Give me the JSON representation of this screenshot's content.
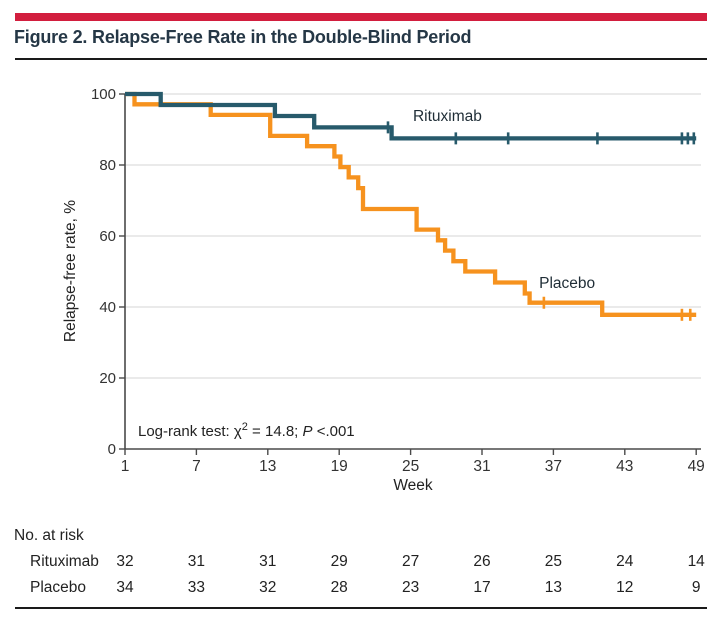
{
  "figure": {
    "title": "Figure 2. Relapse-Free Rate in the Double-Blind Period",
    "title_color": "#253746",
    "accent_color": "#d21e3e",
    "divider_color": "#1a1a1a"
  },
  "chart_data": {
    "type": "line",
    "subtype": "kaplan-meier-step",
    "xlabel": "Week",
    "ylabel": "Relapse-free rate, %",
    "xlim": [
      1,
      49
    ],
    "xticks": [
      1,
      7,
      13,
      19,
      25,
      31,
      37,
      43,
      49
    ],
    "ylim": [
      0,
      100
    ],
    "yticks": [
      0,
      20,
      40,
      60,
      80,
      100
    ],
    "grid": "horizontal",
    "grid_color": "#dedede",
    "axis_color": "#4a4a4a",
    "tick_label_color": "#333333",
    "annotation": {
      "part1": "Log-rank test: χ",
      "sup": "2",
      "part2": " = 14.8; ",
      "italic_p": "P",
      "part3": " <.001"
    },
    "series": [
      {
        "name": "Placebo",
        "color": "#f6921e",
        "label": "Placebo",
        "label_week": 35.8,
        "label_rate": 45.3,
        "points": [
          [
            1,
            100
          ],
          [
            1.8,
            100
          ],
          [
            1.8,
            97.1
          ],
          [
            8.2,
            97.1
          ],
          [
            8.2,
            94.1
          ],
          [
            13.2,
            94.1
          ],
          [
            13.2,
            88.2
          ],
          [
            16.3,
            88.2
          ],
          [
            16.3,
            85.3
          ],
          [
            18.6,
            85.3
          ],
          [
            18.6,
            82.4
          ],
          [
            19.1,
            82.4
          ],
          [
            19.1,
            79.4
          ],
          [
            19.8,
            79.4
          ],
          [
            19.8,
            76.5
          ],
          [
            20.6,
            76.5
          ],
          [
            20.6,
            73.5
          ],
          [
            21,
            73.5
          ],
          [
            21,
            67.6
          ],
          [
            25.5,
            67.6
          ],
          [
            25.5,
            61.8
          ],
          [
            27.3,
            61.8
          ],
          [
            27.3,
            58.8
          ],
          [
            27.9,
            58.8
          ],
          [
            27.9,
            55.9
          ],
          [
            28.6,
            55.9
          ],
          [
            28.6,
            52.9
          ],
          [
            29.6,
            52.9
          ],
          [
            29.6,
            50
          ],
          [
            32.1,
            50
          ],
          [
            32.1,
            46.9
          ],
          [
            34.6,
            46.9
          ],
          [
            34.6,
            43.8
          ],
          [
            35,
            43.8
          ],
          [
            35,
            41.2
          ],
          [
            41.1,
            41.2
          ],
          [
            41.1,
            37.8
          ],
          [
            49,
            37.8
          ]
        ],
        "censor_marks": [
          [
            36.2,
            41.2
          ],
          [
            47.8,
            37.8
          ],
          [
            48.5,
            37.8
          ]
        ]
      },
      {
        "name": "Rituximab",
        "color": "#275a6b",
        "label": "Rituximab",
        "label_week": 25.2,
        "label_rate": 92.4,
        "points": [
          [
            1,
            100
          ],
          [
            4,
            100
          ],
          [
            4,
            96.9
          ],
          [
            13.6,
            96.9
          ],
          [
            13.6,
            93.8
          ],
          [
            16.9,
            93.8
          ],
          [
            16.9,
            90.6
          ],
          [
            23.4,
            90.6
          ],
          [
            23.4,
            87.5
          ],
          [
            49,
            87.5
          ]
        ],
        "censor_marks": [
          [
            23.1,
            90.6
          ],
          [
            28.8,
            87.5
          ],
          [
            33.2,
            87.5
          ],
          [
            40.7,
            87.5
          ],
          [
            47.8,
            87.5
          ],
          [
            48.3,
            87.5
          ],
          [
            48.8,
            87.5
          ]
        ]
      }
    ],
    "at_risk": {
      "header": "No. at risk",
      "weeks": [
        1,
        7,
        13,
        19,
        25,
        31,
        37,
        43,
        49
      ],
      "rows": [
        {
          "name": "Rituximab",
          "values": [
            32,
            31,
            31,
            29,
            27,
            26,
            25,
            24,
            14
          ]
        },
        {
          "name": "Placebo",
          "values": [
            34,
            33,
            32,
            28,
            23,
            17,
            13,
            12,
            9
          ]
        }
      ]
    }
  }
}
